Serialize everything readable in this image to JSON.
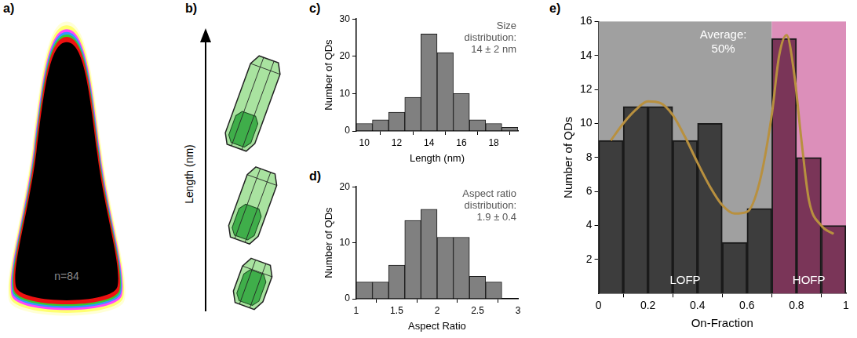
{
  "panels": {
    "a": {
      "label": "a)",
      "annotation": "n=84"
    },
    "b": {
      "label": "b)",
      "axis_label": "Length (nm)"
    }
  },
  "chart_data": [
    {
      "panel": "c)",
      "type": "histogram",
      "x_label": "Length (nm)",
      "y_label": "Number of QDs",
      "annotation": [
        "Size",
        "distribution:",
        "14 ± 2 nm"
      ],
      "bins": [
        9.5,
        10.5,
        11.5,
        12.5,
        13.5,
        14.5,
        15.5,
        16.5,
        17.5,
        18.5,
        19.5
      ],
      "values": [
        2,
        3,
        5,
        9,
        26,
        21,
        10,
        3,
        2,
        1
      ],
      "color": "#808080",
      "xlim": [
        9.5,
        19.5
      ],
      "xticks": [
        10,
        12,
        14,
        16,
        18
      ],
      "ylim": [
        0,
        30
      ],
      "yticks": [
        0,
        10,
        20,
        30
      ],
      "grid": false
    },
    {
      "panel": "d)",
      "type": "histogram",
      "x_label": "Aspect Ratio",
      "y_label": "Number of QDs",
      "annotation": [
        "Aspect ratio",
        "distribution:",
        "1.9 ± 0.4"
      ],
      "bins": [
        1.0,
        1.2,
        1.4,
        1.6,
        1.8,
        2.0,
        2.2,
        2.4,
        2.6,
        2.8
      ],
      "values": [
        3,
        3,
        6,
        14,
        16,
        11,
        11,
        4,
        3
      ],
      "color": "#808080",
      "xlim": [
        1,
        3
      ],
      "xticks": [
        1,
        1.5,
        2,
        2.5,
        3
      ],
      "ylim": [
        0,
        20
      ],
      "yticks": [
        0,
        10,
        20
      ],
      "grid": false
    },
    {
      "panel": "e)",
      "type": "histogram",
      "x_label": "On-Fraction",
      "y_label": "Number of QDs",
      "annotation": [
        "Average:",
        "50%"
      ],
      "bins": [
        0,
        0.1,
        0.2,
        0.3,
        0.4,
        0.5,
        0.6,
        0.7,
        0.8,
        0.9,
        1
      ],
      "values": [
        9,
        11,
        11,
        9,
        10,
        3,
        5,
        15,
        8,
        4
      ],
      "colors": [
        "#3d3d3d",
        "#3d3d3d",
        "#3d3d3d",
        "#3d3d3d",
        "#3d3d3d",
        "#3d3d3d",
        "#3d3d3d",
        "#7a3558",
        "#7a3558",
        "#7a3558"
      ],
      "regions": [
        {
          "name": "LOFP",
          "from": 0,
          "to": 0.7,
          "color": "#a0a0a0"
        },
        {
          "name": "HOFP",
          "from": 0.7,
          "to": 1,
          "color": "#dc8fba"
        }
      ],
      "fit": {
        "type": "line",
        "color": "#b8903f",
        "x": [
          0.05,
          0.1,
          0.15,
          0.2,
          0.25,
          0.3,
          0.35,
          0.4,
          0.45,
          0.5,
          0.55,
          0.6,
          0.65,
          0.7,
          0.73,
          0.76,
          0.79,
          0.82,
          0.85,
          0.9,
          0.95
        ],
        "values": [
          9,
          10,
          10.8,
          11.3,
          11.2,
          10.5,
          9.2,
          7.7,
          6.3,
          5.2,
          4.7,
          4.8,
          6.5,
          10.5,
          14,
          15.2,
          13,
          9,
          5.5,
          4,
          3.5
        ]
      },
      "xlim": [
        0,
        1
      ],
      "xticks": [
        0,
        0.2,
        0.4,
        0.6,
        0.8,
        1
      ],
      "ylim": [
        0,
        16
      ],
      "yticks": [
        2,
        4,
        6,
        8,
        10,
        12,
        14,
        16
      ],
      "grid": false
    }
  ]
}
